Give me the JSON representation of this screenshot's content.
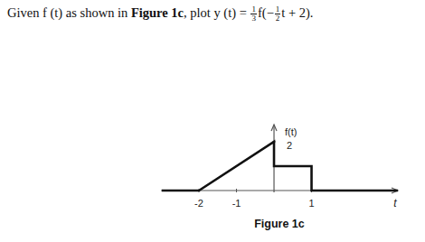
{
  "question": {
    "text1": "Given f (t) as shown in ",
    "ref": "Figure 1c",
    "text2": ", plot y (t) = ",
    "frac1": {
      "num": "1",
      "den": "3"
    },
    "text3": "f(−",
    "frac2": {
      "num": "1",
      "den": "2"
    },
    "text4": "t + 2)."
  },
  "caption": "Figure 1c",
  "chart_data": {
    "type": "line",
    "x_label": "t",
    "y_label": "f(t)",
    "x": [
      -3,
      -2,
      0,
      0,
      1,
      1,
      3.3
    ],
    "values": [
      0,
      0,
      2,
      1,
      1,
      0,
      0
    ],
    "color": "#111111",
    "xlim": [
      -3,
      3.3
    ],
    "ylim": [
      0,
      2.7
    ],
    "xticks": [
      -2,
      -1,
      1
    ],
    "yticks": [
      2
    ],
    "grid": false
  }
}
